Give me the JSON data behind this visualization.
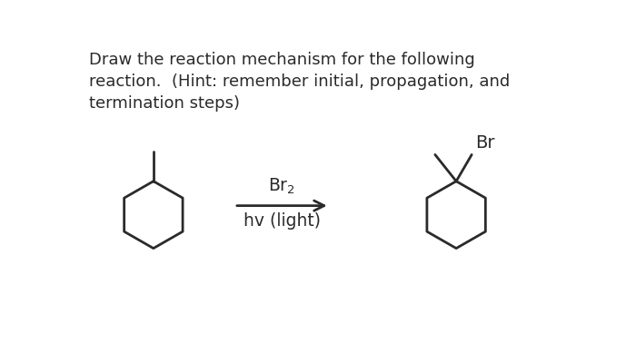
{
  "background_color": "#ffffff",
  "text_color": "#2a2a2a",
  "title_line1": "Draw the reaction mechanism for the following",
  "title_line2": "reaction.  (Hint: remember initial, propagation, and",
  "title_line3": "termination steps)",
  "reagent_top": "Br₂",
  "reagent_bottom": "hv (light)",
  "br_label": "Br",
  "lw": 2.0,
  "font_size_title": 13.0,
  "font_size_reagent": 13.5,
  "font_size_br": 14.0
}
